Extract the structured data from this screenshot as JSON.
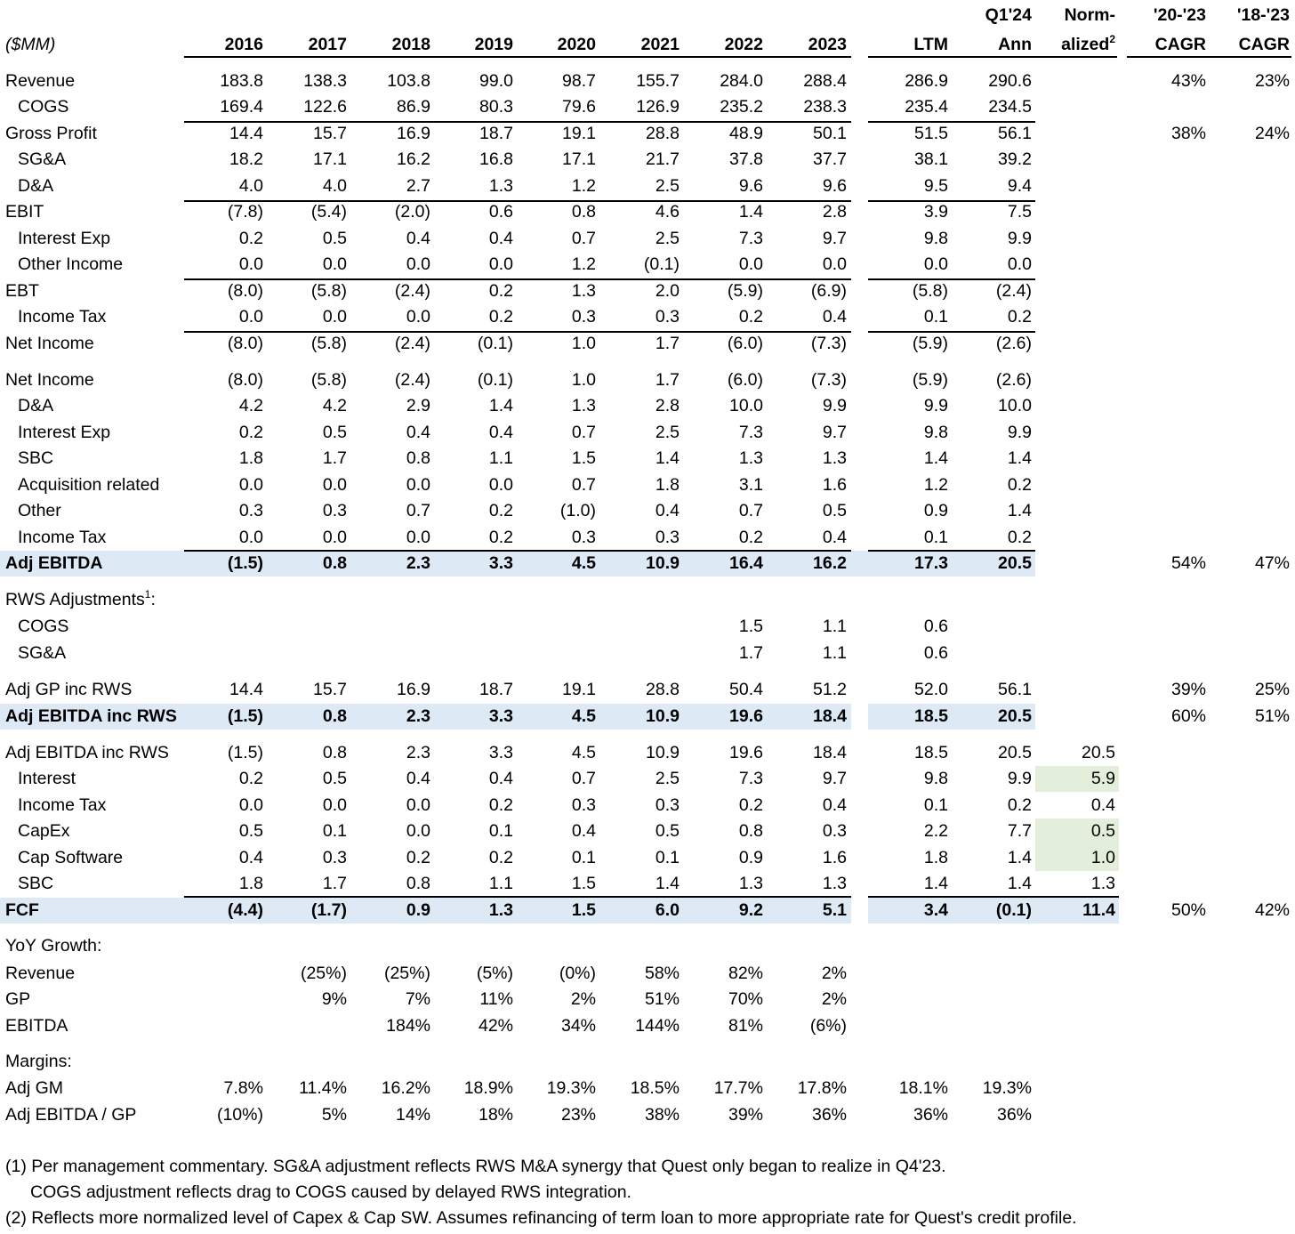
{
  "header": {
    "unit": "($MM)",
    "columns": [
      "2016",
      "2017",
      "2018",
      "2019",
      "2020",
      "2021",
      "2022",
      "2023",
      "LTM",
      "Q1'24\nAnn",
      "Norm-\nalized2",
      "'20-'23\nCAGR",
      "'18-'23\nCAGR"
    ],
    "q1_top": "Q1'24",
    "q1_bottom": "Ann",
    "norm_top": "Norm-",
    "norm_bottom": "alized",
    "norm_sup": "2",
    "cagr1_top": "'20-'23",
    "cagr2_top": "'18-'23",
    "cagr_bottom": "CAGR",
    "years": [
      "2016",
      "2017",
      "2018",
      "2019",
      "2020",
      "2021",
      "2022",
      "2023"
    ],
    "ltm": "LTM"
  },
  "rows": [
    {
      "id": "revenue",
      "label": "Revenue",
      "indent": false,
      "bold": false,
      "vals": [
        "183.8",
        "138.3",
        "103.8",
        "99.0",
        "98.7",
        "155.7",
        "284.0",
        "288.4",
        "286.9",
        "290.6",
        "",
        "43%",
        "23%"
      ]
    },
    {
      "id": "cogs",
      "label": "COGS",
      "indent": true,
      "bold": false,
      "vals": [
        "169.4",
        "122.6",
        "86.9",
        "80.3",
        "79.6",
        "126.9",
        "235.2",
        "238.3",
        "235.4",
        "234.5",
        "",
        "",
        ""
      ]
    },
    {
      "id": "gross-profit",
      "label": "Gross Profit",
      "indent": false,
      "bold": false,
      "vals": [
        "14.4",
        "15.7",
        "16.9",
        "18.7",
        "19.1",
        "28.8",
        "48.9",
        "50.1",
        "51.5",
        "56.1",
        "",
        "38%",
        "24%"
      ]
    },
    {
      "id": "sga",
      "label": "SG&A",
      "indent": true,
      "bold": false,
      "vals": [
        "18.2",
        "17.1",
        "16.2",
        "16.8",
        "17.1",
        "21.7",
        "37.8",
        "37.7",
        "38.1",
        "39.2",
        "",
        "",
        ""
      ]
    },
    {
      "id": "da",
      "label": "D&A",
      "indent": true,
      "bold": false,
      "vals": [
        "4.0",
        "4.0",
        "2.7",
        "1.3",
        "1.2",
        "2.5",
        "9.6",
        "9.6",
        "9.5",
        "9.4",
        "",
        "",
        ""
      ]
    },
    {
      "id": "ebit",
      "label": "EBIT",
      "indent": false,
      "bold": false,
      "vals": [
        "(7.8)",
        "(5.4)",
        "(2.0)",
        "0.6",
        "0.8",
        "4.6",
        "1.4",
        "2.8",
        "3.9",
        "7.5",
        "",
        "",
        ""
      ]
    },
    {
      "id": "interest-exp",
      "label": "Interest Exp",
      "indent": true,
      "bold": false,
      "vals": [
        "0.2",
        "0.5",
        "0.4",
        "0.4",
        "0.7",
        "2.5",
        "7.3",
        "9.7",
        "9.8",
        "9.9",
        "",
        "",
        ""
      ]
    },
    {
      "id": "other-income",
      "label": "Other Income",
      "indent": true,
      "bold": false,
      "vals": [
        "0.0",
        "0.0",
        "0.0",
        "0.0",
        "1.2",
        "(0.1)",
        "0.0",
        "0.0",
        "0.0",
        "0.0",
        "",
        "",
        ""
      ]
    },
    {
      "id": "ebt",
      "label": "EBT",
      "indent": false,
      "bold": false,
      "vals": [
        "(8.0)",
        "(5.8)",
        "(2.4)",
        "0.2",
        "1.3",
        "2.0",
        "(5.9)",
        "(6.9)",
        "(5.8)",
        "(2.4)",
        "",
        "",
        ""
      ]
    },
    {
      "id": "income-tax",
      "label": "Income Tax",
      "indent": true,
      "bold": false,
      "vals": [
        "0.0",
        "0.0",
        "0.0",
        "0.2",
        "0.3",
        "0.3",
        "0.2",
        "0.4",
        "0.1",
        "0.2",
        "",
        "",
        ""
      ]
    },
    {
      "id": "net-income",
      "label": "Net Income",
      "indent": false,
      "bold": false,
      "vals": [
        "(8.0)",
        "(5.8)",
        "(2.4)",
        "(0.1)",
        "1.0",
        "1.7",
        "(6.0)",
        "(7.3)",
        "(5.9)",
        "(2.6)",
        "",
        "",
        ""
      ]
    },
    {
      "id": "net-income-2",
      "label": "Net Income",
      "indent": false,
      "bold": false,
      "vals": [
        "(8.0)",
        "(5.8)",
        "(2.4)",
        "(0.1)",
        "1.0",
        "1.7",
        "(6.0)",
        "(7.3)",
        "(5.9)",
        "(2.6)",
        "",
        "",
        ""
      ]
    },
    {
      "id": "da-2",
      "label": "D&A",
      "indent": true,
      "bold": false,
      "vals": [
        "4.2",
        "4.2",
        "2.9",
        "1.4",
        "1.3",
        "2.8",
        "10.0",
        "9.9",
        "9.9",
        "10.0",
        "",
        "",
        ""
      ]
    },
    {
      "id": "interest-exp-2",
      "label": "Interest Exp",
      "indent": true,
      "bold": false,
      "vals": [
        "0.2",
        "0.5",
        "0.4",
        "0.4",
        "0.7",
        "2.5",
        "7.3",
        "9.7",
        "9.8",
        "9.9",
        "",
        "",
        ""
      ]
    },
    {
      "id": "sbc",
      "label": "SBC",
      "indent": true,
      "bold": false,
      "vals": [
        "1.8",
        "1.7",
        "0.8",
        "1.1",
        "1.5",
        "1.4",
        "1.3",
        "1.3",
        "1.4",
        "1.4",
        "",
        "",
        ""
      ]
    },
    {
      "id": "acq",
      "label": "Acquisition related",
      "indent": true,
      "bold": false,
      "vals": [
        "0.0",
        "0.0",
        "0.0",
        "0.0",
        "0.7",
        "1.8",
        "3.1",
        "1.6",
        "1.2",
        "0.2",
        "",
        "",
        ""
      ]
    },
    {
      "id": "other",
      "label": "Other",
      "indent": true,
      "bold": false,
      "vals": [
        "0.3",
        "0.3",
        "0.7",
        "0.2",
        "(1.0)",
        "0.4",
        "0.7",
        "0.5",
        "0.9",
        "1.4",
        "",
        "",
        ""
      ]
    },
    {
      "id": "income-tax-2",
      "label": "Income Tax",
      "indent": true,
      "bold": false,
      "vals": [
        "0.0",
        "0.0",
        "0.0",
        "0.2",
        "0.3",
        "0.3",
        "0.2",
        "0.4",
        "0.1",
        "0.2",
        "",
        "",
        ""
      ]
    },
    {
      "id": "adj-ebitda",
      "label": "Adj EBITDA",
      "indent": false,
      "bold": true,
      "vals": [
        "(1.5)",
        "0.8",
        "2.3",
        "3.3",
        "4.5",
        "10.9",
        "16.4",
        "16.2",
        "17.3",
        "20.5",
        "",
        "54%",
        "47%"
      ]
    },
    {
      "id": "rws-cogs",
      "label": "COGS",
      "indent": true,
      "bold": false,
      "vals": [
        "",
        "",
        "",
        "",
        "",
        "",
        "1.5",
        "1.1",
        "0.6",
        "",
        "",
        "",
        ""
      ]
    },
    {
      "id": "rws-sga",
      "label": "SG&A",
      "indent": true,
      "bold": false,
      "vals": [
        "",
        "",
        "",
        "",
        "",
        "",
        "1.7",
        "1.1",
        "0.6",
        "",
        "",
        "",
        ""
      ]
    },
    {
      "id": "adj-gp-rws",
      "label": "Adj GP inc RWS",
      "indent": false,
      "bold": false,
      "vals": [
        "14.4",
        "15.7",
        "16.9",
        "18.7",
        "19.1",
        "28.8",
        "50.4",
        "51.2",
        "52.0",
        "56.1",
        "",
        "39%",
        "25%"
      ]
    },
    {
      "id": "adj-ebitda-rws",
      "label": "Adj EBITDA inc RWS",
      "indent": false,
      "bold": true,
      "vals": [
        "(1.5)",
        "0.8",
        "2.3",
        "3.3",
        "4.5",
        "10.9",
        "19.6",
        "18.4",
        "18.5",
        "20.5",
        "",
        "60%",
        "51%"
      ]
    },
    {
      "id": "adj-ebitda-rws-2",
      "label": "Adj EBITDA inc RWS",
      "indent": false,
      "bold": false,
      "vals": [
        "(1.5)",
        "0.8",
        "2.3",
        "3.3",
        "4.5",
        "10.9",
        "19.6",
        "18.4",
        "18.5",
        "20.5",
        "20.5",
        "",
        ""
      ]
    },
    {
      "id": "interest",
      "label": "Interest",
      "indent": true,
      "bold": false,
      "vals": [
        "0.2",
        "0.5",
        "0.4",
        "0.4",
        "0.7",
        "2.5",
        "7.3",
        "9.7",
        "9.8",
        "9.9",
        "5.9",
        "",
        ""
      ]
    },
    {
      "id": "income-tax-3",
      "label": "Income Tax",
      "indent": true,
      "bold": false,
      "vals": [
        "0.0",
        "0.0",
        "0.0",
        "0.2",
        "0.3",
        "0.3",
        "0.2",
        "0.4",
        "0.1",
        "0.2",
        "0.4",
        "",
        ""
      ]
    },
    {
      "id": "capex",
      "label": "CapEx",
      "indent": true,
      "bold": false,
      "vals": [
        "0.5",
        "0.1",
        "0.0",
        "0.1",
        "0.4",
        "0.5",
        "0.8",
        "0.3",
        "2.2",
        "7.7",
        "0.5",
        "",
        ""
      ]
    },
    {
      "id": "cap-software",
      "label": "Cap Software",
      "indent": true,
      "bold": false,
      "vals": [
        "0.4",
        "0.3",
        "0.2",
        "0.2",
        "0.1",
        "0.1",
        "0.9",
        "1.6",
        "1.8",
        "1.4",
        "1.0",
        "",
        ""
      ]
    },
    {
      "id": "sbc-2",
      "label": "SBC",
      "indent": true,
      "bold": false,
      "vals": [
        "1.8",
        "1.7",
        "0.8",
        "1.1",
        "1.5",
        "1.4",
        "1.3",
        "1.3",
        "1.4",
        "1.4",
        "1.3",
        "",
        ""
      ]
    },
    {
      "id": "fcf",
      "label": "FCF",
      "indent": false,
      "bold": true,
      "vals": [
        "(4.4)",
        "(1.7)",
        "0.9",
        "1.3",
        "1.5",
        "6.0",
        "9.2",
        "5.1",
        "3.4",
        "(0.1)",
        "11.4",
        "50%",
        "42%"
      ]
    },
    {
      "id": "yoy-revenue",
      "label": "Revenue",
      "indent": false,
      "bold": false,
      "vals": [
        "",
        "(25%)",
        "(25%)",
        "(5%)",
        "(0%)",
        "58%",
        "82%",
        "2%",
        "",
        "",
        "",
        "",
        ""
      ]
    },
    {
      "id": "yoy-gp",
      "label": "GP",
      "indent": false,
      "bold": false,
      "vals": [
        "",
        "9%",
        "7%",
        "11%",
        "2%",
        "51%",
        "70%",
        "2%",
        "",
        "",
        "",
        "",
        ""
      ]
    },
    {
      "id": "yoy-ebitda",
      "label": "EBITDA",
      "indent": false,
      "bold": false,
      "vals": [
        "",
        "",
        "184%",
        "42%",
        "34%",
        "144%",
        "81%",
        "(6%)",
        "",
        "",
        "",
        "",
        ""
      ]
    },
    {
      "id": "adj-gm",
      "label": "Adj GM",
      "indent": false,
      "bold": false,
      "vals": [
        "7.8%",
        "11.4%",
        "16.2%",
        "18.9%",
        "19.3%",
        "18.5%",
        "17.7%",
        "17.8%",
        "18.1%",
        "19.3%",
        "",
        "",
        ""
      ]
    },
    {
      "id": "ebitda-gp",
      "label": "Adj EBITDA / GP",
      "indent": false,
      "bold": false,
      "vals": [
        "(10%)",
        "5%",
        "14%",
        "18%",
        "23%",
        "38%",
        "39%",
        "36%",
        "36%",
        "36%",
        "",
        "",
        ""
      ]
    }
  ],
  "sections": {
    "rws_label": "RWS Adjustments",
    "rws_sup": "1",
    "rws_colon": ":",
    "yoy_label": "YoY Growth:",
    "margins_label": "Margins:"
  },
  "footnotes": {
    "fn1_line1": "(1) Per management commentary.  SG&A adjustment reflects RWS M&A synergy that Quest only began to realize in Q4'23.",
    "fn1_line2": "COGS adjustment reflects drag to COGS caused by delayed RWS integration.",
    "fn2": "(2) Reflects more normalized level of Capex & Cap SW.  Assumes refinancing of term loan to more appropriate rate for Quest's credit profile."
  },
  "colors": {
    "highlight_blue": "#dde9f5",
    "highlight_green": "#e3efda"
  }
}
